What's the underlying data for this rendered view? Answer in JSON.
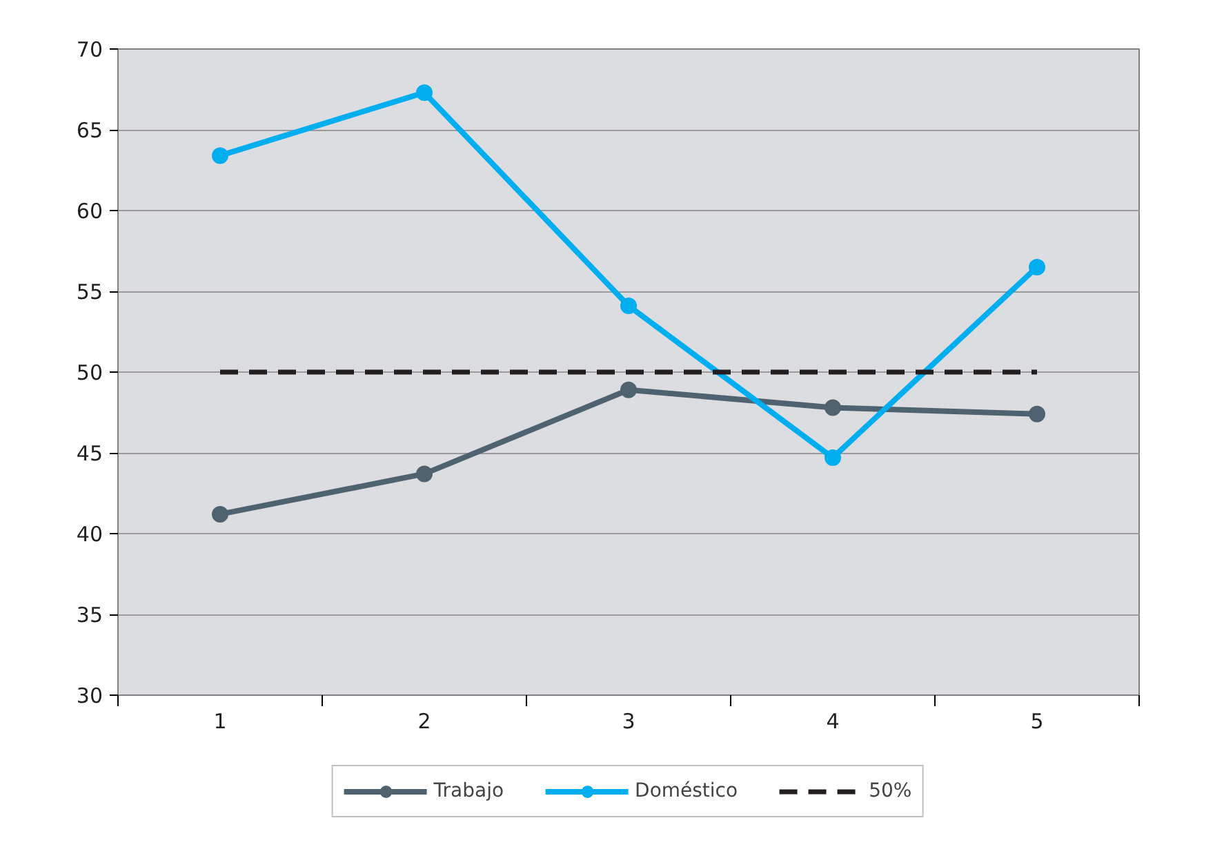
{
  "chart_data": {
    "type": "line",
    "categories": [
      "1",
      "2",
      "3",
      "4",
      "5"
    ],
    "series": [
      {
        "name": "Trabajo",
        "color": "#4f6270",
        "values": [
          41.2,
          43.7,
          48.9,
          47.8,
          47.4
        ],
        "marker": "circle",
        "line_style": "solid"
      },
      {
        "name": "Doméstico",
        "color": "#00aeef",
        "values": [
          63.4,
          67.3,
          54.1,
          44.7,
          56.5
        ],
        "marker": "circle",
        "line_style": "solid"
      },
      {
        "name": "50%",
        "color": "#231f20",
        "values": [
          50,
          50,
          50,
          50,
          50
        ],
        "marker": "none",
        "line_style": "dashed"
      }
    ],
    "ylim": [
      30,
      70
    ],
    "yticks": [
      30,
      35,
      40,
      45,
      50,
      55,
      60,
      65,
      70
    ],
    "grid": "y",
    "legend": "bottom"
  }
}
